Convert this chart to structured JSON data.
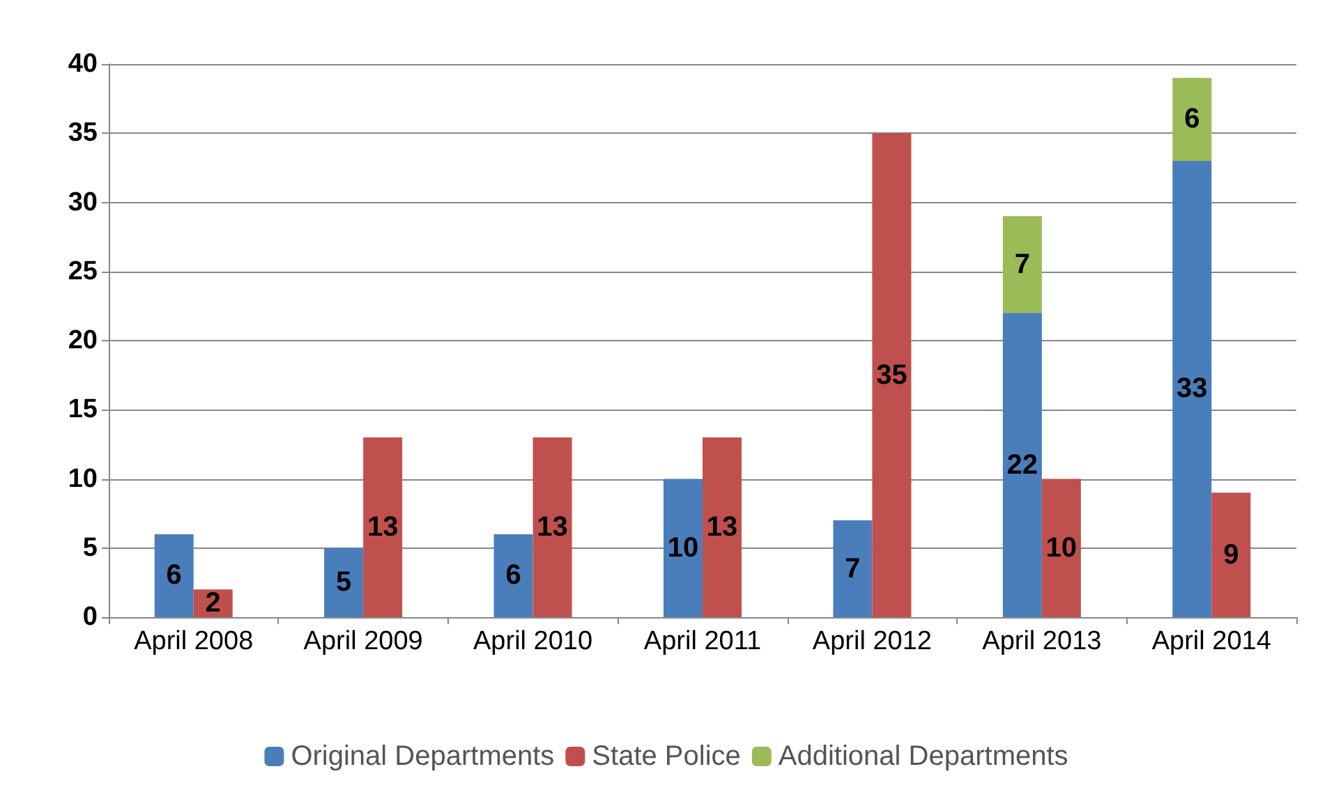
{
  "chart_data": {
    "type": "bar",
    "categories": [
      "April 2008",
      "April 2009",
      "April 2010",
      "April 2011",
      "April 2012",
      "April 2013",
      "April 2014"
    ],
    "series": [
      {
        "name": "Original Departments",
        "color": "#4a7ebb",
        "values": [
          6,
          5,
          6,
          10,
          7,
          22,
          33
        ]
      },
      {
        "name": "State Police",
        "color": "#c0504d",
        "values": [
          2,
          13,
          13,
          13,
          35,
          10,
          9
        ]
      },
      {
        "name": "Additional Departments",
        "color": "#9bbb59",
        "values": [
          null,
          null,
          null,
          null,
          null,
          7,
          6
        ],
        "base": [
          null,
          null,
          null,
          null,
          null,
          22,
          33
        ]
      }
    ],
    "ylim": [
      0,
      40
    ],
    "yticks": [
      0,
      5,
      10,
      15,
      20,
      25,
      30,
      35,
      40
    ],
    "grid": "y",
    "legend": "bottom",
    "data_labels": true
  }
}
